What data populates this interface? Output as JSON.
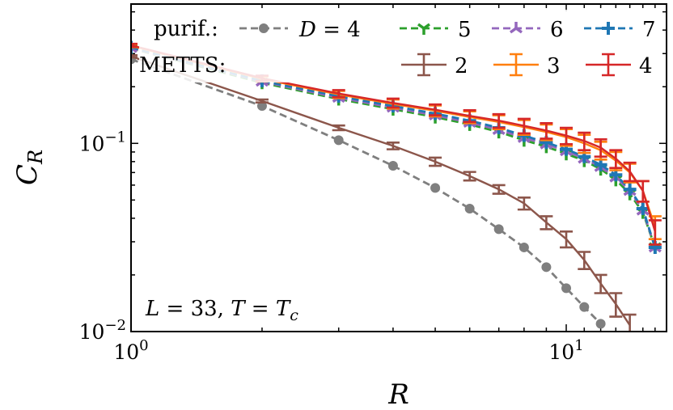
{
  "chart_data": {
    "type": "line",
    "xscale": "log",
    "yscale": "log",
    "xlim": [
      1,
      17
    ],
    "ylim": [
      0.01,
      0.55
    ],
    "xlabel": "R",
    "ylabel_base": "C",
    "ylabel_sub": "R",
    "x_ticks": [
      {
        "value": 1,
        "base": "10",
        "exp": "0"
      },
      {
        "value": 10,
        "base": "10",
        "exp": "1"
      }
    ],
    "y_ticks": [
      {
        "value": 0.01,
        "base": "10",
        "exp": "−2"
      },
      {
        "value": 0.1,
        "base": "10",
        "exp": "−1"
      }
    ],
    "annotation": "L = 33,  T = T_c",
    "legend": {
      "placement": "top",
      "purif_title": "purif.:",
      "metts_title": "METTS:",
      "purif_entries": [
        "D = 4",
        "5",
        "6",
        "7"
      ],
      "metts_entries": [
        "2",
        "3",
        "4"
      ]
    },
    "series": [
      {
        "name": "D = 4",
        "group": "purif",
        "color": "#7f7f7f",
        "marker": "circle",
        "x": [
          1,
          2,
          3,
          4,
          5,
          6,
          7,
          8,
          9,
          10,
          11,
          12
        ],
        "y": [
          0.28,
          0.158,
          0.104,
          0.076,
          0.058,
          0.045,
          0.035,
          0.028,
          0.022,
          0.017,
          0.0135,
          0.011
        ]
      },
      {
        "name": "5",
        "group": "purif",
        "color": "#2ca02c",
        "marker": "tri_down",
        "x": [
          1,
          2,
          3,
          4,
          5,
          6,
          7,
          8,
          9,
          10,
          11,
          12,
          13,
          14,
          15,
          16
        ],
        "y": [
          0.32,
          0.21,
          0.172,
          0.152,
          0.138,
          0.126,
          0.115,
          0.104,
          0.096,
          0.088,
          0.081,
          0.073,
          0.064,
          0.054,
          0.043,
          0.028
        ]
      },
      {
        "name": "6",
        "group": "purif",
        "color": "#9467bd",
        "marker": "tri_up",
        "x": [
          1,
          2,
          3,
          4,
          5,
          6,
          7,
          8,
          9,
          10,
          11,
          12,
          13,
          14,
          15,
          16
        ],
        "y": [
          0.322,
          0.213,
          0.175,
          0.155,
          0.141,
          0.129,
          0.118,
          0.107,
          0.099,
          0.091,
          0.083,
          0.075,
          0.066,
          0.056,
          0.044,
          0.028
        ]
      },
      {
        "name": "7",
        "group": "purif",
        "color": "#1f77b4",
        "marker": "plus",
        "x": [
          1,
          2,
          3,
          4,
          5,
          6,
          7,
          8,
          9,
          10,
          11,
          12,
          13,
          14,
          15,
          16
        ],
        "y": [
          0.324,
          0.215,
          0.178,
          0.158,
          0.144,
          0.132,
          0.121,
          0.11,
          0.101,
          0.093,
          0.085,
          0.077,
          0.068,
          0.057,
          0.045,
          0.028
        ]
      },
      {
        "name": "2",
        "group": "metts",
        "color": "#8c564b",
        "marker": "errorbar",
        "x": [
          1,
          2,
          3,
          4,
          5,
          6,
          7,
          8,
          9,
          10,
          11,
          12,
          13,
          14
        ],
        "y": [
          0.29,
          0.168,
          0.121,
          0.097,
          0.08,
          0.067,
          0.057,
          0.048,
          0.038,
          0.031,
          0.024,
          0.018,
          0.014,
          0.0108
        ],
        "err": [
          0.004,
          0.003,
          0.0035,
          0.004,
          0.004,
          0.0035,
          0.003,
          0.0035,
          0.003,
          0.003,
          0.0025,
          0.002,
          0.002,
          0.0015
        ]
      },
      {
        "name": "3",
        "group": "metts",
        "color": "#ff7f0e",
        "marker": "errorbar",
        "x": [
          1,
          2,
          3,
          4,
          5,
          6,
          7,
          8,
          9,
          10,
          11,
          12,
          13,
          14,
          15,
          16
        ],
        "y": [
          0.33,
          0.22,
          0.182,
          0.162,
          0.149,
          0.138,
          0.13,
          0.122,
          0.115,
          0.108,
          0.1,
          0.092,
          0.081,
          0.07,
          0.056,
          0.036
        ],
        "err": [
          0.006,
          0.007,
          0.008,
          0.009,
          0.01,
          0.01,
          0.011,
          0.011,
          0.011,
          0.011,
          0.011,
          0.01,
          0.009,
          0.008,
          0.007,
          0.005
        ]
      },
      {
        "name": "4",
        "group": "metts",
        "color": "#d62728",
        "marker": "errorbar",
        "x": [
          1,
          2,
          3,
          4,
          5,
          6,
          7,
          8,
          9,
          10,
          11,
          12,
          13,
          14,
          15,
          16
        ],
        "y": [
          0.332,
          0.222,
          0.184,
          0.164,
          0.151,
          0.14,
          0.132,
          0.124,
          0.117,
          0.11,
          0.103,
          0.095,
          0.083,
          0.071,
          0.056,
          0.034
        ],
        "err": [
          0.006,
          0.007,
          0.008,
          0.009,
          0.01,
          0.01,
          0.011,
          0.011,
          0.011,
          0.011,
          0.011,
          0.01,
          0.009,
          0.008,
          0.007,
          0.005
        ]
      }
    ]
  }
}
